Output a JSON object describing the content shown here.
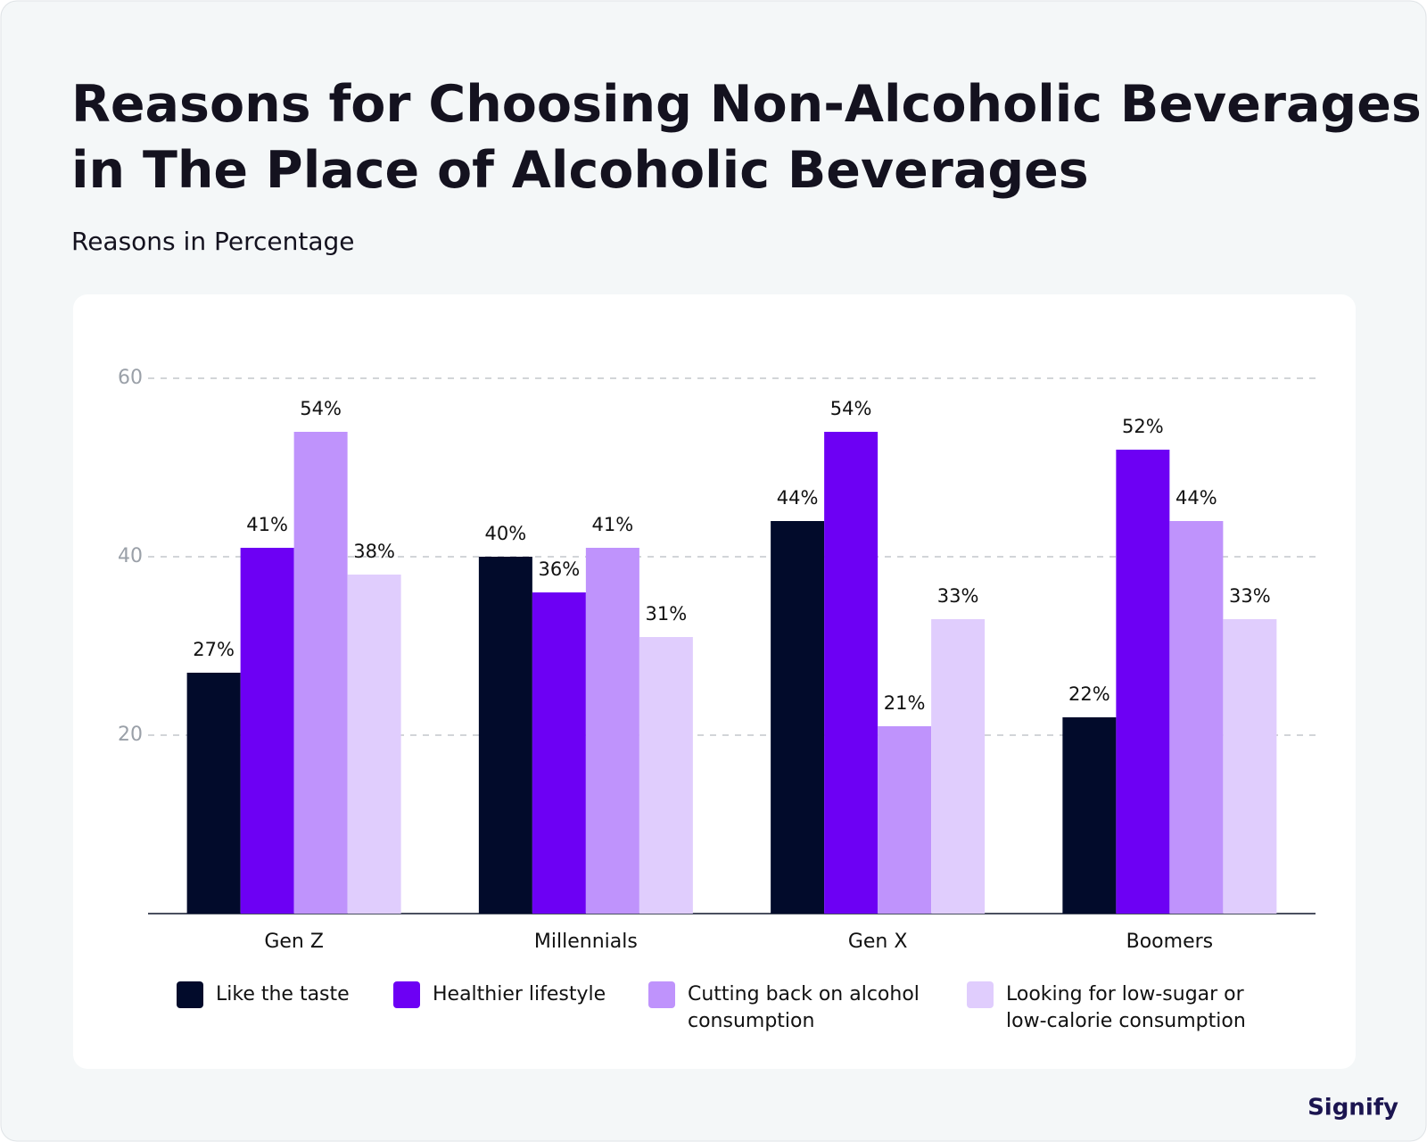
{
  "chart_data": {
    "type": "bar",
    "title": "Reasons for Choosing Non-Alcoholic Beverages in The Place of Alcoholic Beverages",
    "subtitle": "Reasons in Percentage",
    "categories": [
      "Gen Z",
      "Millennials",
      "Gen X",
      "Boomers"
    ],
    "series": [
      {
        "name": "Like the taste",
        "color": "#020b2b",
        "values": [
          27,
          40,
          44,
          22
        ],
        "value_labels": [
          "27%",
          "40%",
          "44%",
          "22%"
        ]
      },
      {
        "name": "Healthier lifestyle",
        "color": "#6d00f4",
        "values": [
          41,
          36,
          54,
          52
        ],
        "value_labels": [
          "41%",
          "36%",
          "54%",
          "52%"
        ]
      },
      {
        "name": "Cutting back on alcohol consumption",
        "color": "#bf93fc",
        "values": [
          54,
          41,
          21,
          44
        ],
        "value_labels": [
          "54%",
          "41%",
          "21%",
          "44%"
        ]
      },
      {
        "name": "Looking for low-sugar or low-calorie consumption",
        "color": "#e0cdfd",
        "values": [
          38,
          31,
          33,
          33
        ],
        "value_labels": [
          "38%",
          "31%",
          "33%",
          "33%"
        ]
      }
    ],
    "ylim": [
      0,
      60
    ],
    "yticks": [
      20,
      40,
      60
    ],
    "grid": true,
    "brand": "Signify"
  }
}
